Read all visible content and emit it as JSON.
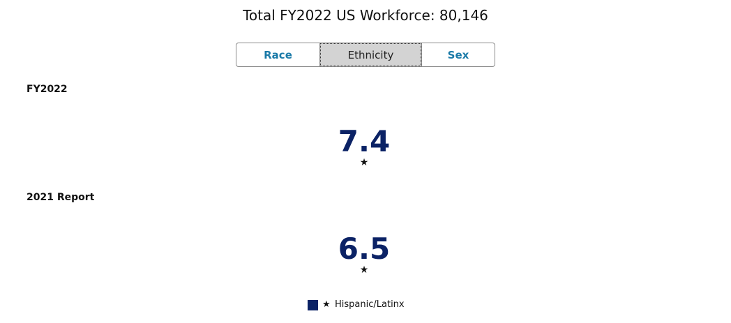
{
  "header": {
    "title": "Total FY2022 US Workforce: 80,146"
  },
  "tabs": [
    "Race",
    "Ethnicity",
    "Sex"
  ],
  "sections": [
    {
      "label": "FY2022",
      "value": 7.4,
      "marker": "★"
    },
    {
      "label": "2021 Report",
      "value": 6.5,
      "marker": "★"
    }
  ],
  "legend": {
    "marker": "★",
    "label": "Hispanic/Latinx",
    "color": "#0b2265"
  }
}
